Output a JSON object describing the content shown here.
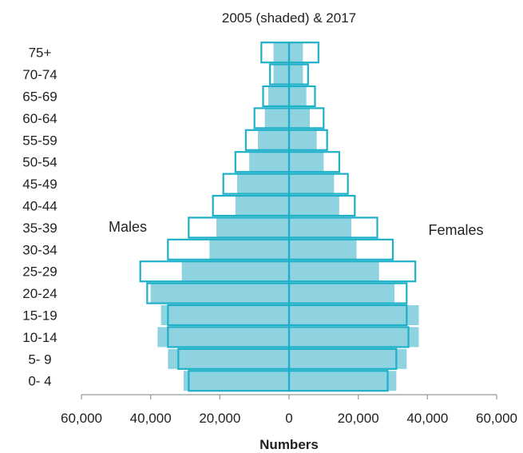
{
  "chart_data": {
    "type": "bar",
    "orientation": "horizontal",
    "title": "2005 (shaded) & 2017",
    "xlabel": "Numbers",
    "ylabel": "",
    "categories": [
      "0- 4",
      "5- 9",
      "10-14",
      "15-19",
      "20-24",
      "25-29",
      "30-34",
      "35-39",
      "40-44",
      "45-49",
      "50-54",
      "55-59",
      "60-64",
      "65-69",
      "70-74",
      "75+"
    ],
    "x_ticks": [
      "60,000",
      "40,000",
      "20,000",
      "0",
      "20,000",
      "40,000",
      "60,000"
    ],
    "xlim": [
      -60000,
      60000
    ],
    "side_labels": {
      "left": "Males",
      "right": "Females"
    },
    "series": [
      {
        "year": "2005",
        "style": "shaded",
        "males": [
          30500,
          35000,
          38000,
          37000,
          40000,
          31000,
          23000,
          21000,
          15500,
          15000,
          11500,
          9000,
          7000,
          6000,
          4500,
          4500
        ],
        "females": [
          31000,
          34000,
          37500,
          37500,
          30500,
          26000,
          19500,
          18000,
          14500,
          13000,
          10000,
          8000,
          6000,
          5000,
          4000,
          4000
        ]
      },
      {
        "year": "2017",
        "style": "outline",
        "males": [
          29000,
          32000,
          35000,
          35000,
          41000,
          43000,
          35000,
          29000,
          22000,
          19000,
          15500,
          12500,
          10000,
          7500,
          5500,
          8000
        ],
        "females": [
          28500,
          31000,
          34500,
          34000,
          34000,
          36500,
          30000,
          25500,
          19000,
          17000,
          14500,
          11000,
          10000,
          7500,
          5500,
          8500
        ]
      }
    ],
    "colors": {
      "shaded_fill": "#8fd3e0",
      "outline_stroke": "#1eb0c8",
      "axis": "#999999",
      "center_line": "#1eb0c8"
    }
  }
}
